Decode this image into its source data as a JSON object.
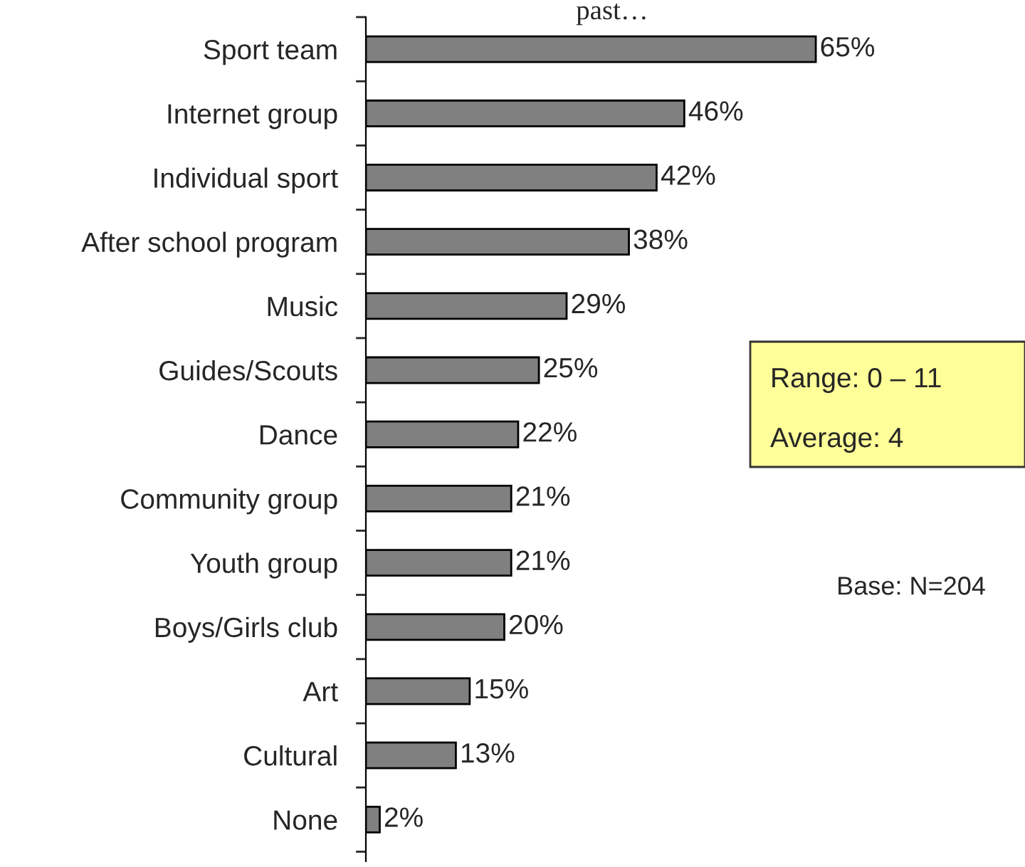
{
  "chart_data": {
    "type": "bar",
    "orientation": "horizontal",
    "title": "past…",
    "categories": [
      "Sport team",
      "Internet group",
      "Individual sport",
      "After school program",
      "Music",
      "Guides/Scouts",
      "Dance",
      "Community group",
      "Youth group",
      "Boys/Girls club",
      "Art",
      "Cultural",
      "None"
    ],
    "values": [
      65,
      46,
      42,
      38,
      29,
      25,
      22,
      21,
      21,
      20,
      15,
      13,
      2
    ],
    "value_labels": [
      "65%",
      "46%",
      "42%",
      "38%",
      "29%",
      "25%",
      "22%",
      "21%",
      "21%",
      "20%",
      "15%",
      "13%",
      "2%"
    ],
    "color": "#808080",
    "annotations": [
      "Range: 0 – 11",
      "Average: 4",
      "Base: N=204"
    ],
    "grid": false,
    "legend": false
  }
}
